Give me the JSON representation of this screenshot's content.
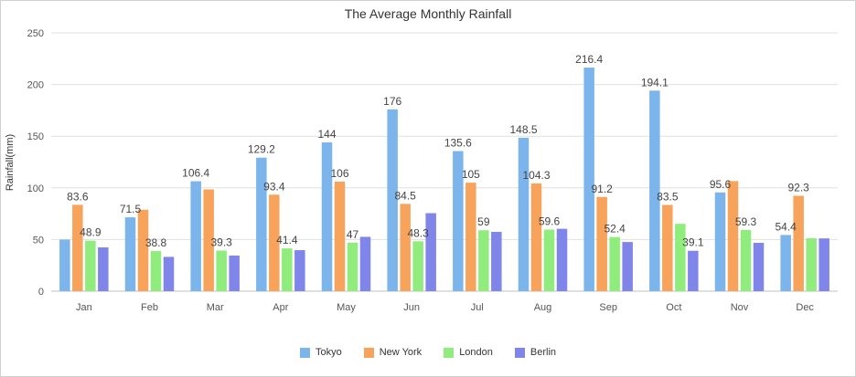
{
  "chart_data": {
    "type": "bar",
    "title": "The Average Monthly Rainfall",
    "xlabel": "",
    "ylabel": "Rainfall(mm)",
    "ylim": [
      0,
      250
    ],
    "yticks": [
      0,
      50,
      100,
      150,
      200,
      250
    ],
    "grid": true,
    "legend_position": "bottom",
    "categories": [
      "Jan",
      "Feb",
      "Mar",
      "Apr",
      "May",
      "Jun",
      "Jul",
      "Aug",
      "Sep",
      "Oct",
      "Nov",
      "Dec"
    ],
    "series": [
      {
        "name": "Tokyo",
        "color": "#7cb5ec",
        "values": [
          49.9,
          71.5,
          106.4,
          129.2,
          144,
          176,
          135.6,
          148.5,
          216.4,
          194.1,
          95.6,
          54.4
        ],
        "labels": [
          "",
          "71.5",
          "106.4",
          "129.2",
          "144",
          "176",
          "135.6",
          "148.5",
          "216.4",
          "194.1",
          "95.6",
          "54.4"
        ]
      },
      {
        "name": "New York",
        "color": "#f7a35c",
        "values": [
          83.6,
          78.8,
          98.5,
          93.4,
          106,
          84.5,
          105,
          104.3,
          91.2,
          83.5,
          106.6,
          92.3
        ],
        "labels": [
          "83.6",
          "",
          "",
          "93.4",
          "106",
          "84.5",
          "105",
          "104.3",
          "91.2",
          "83.5",
          "",
          "92.3"
        ]
      },
      {
        "name": "London",
        "color": "#90ed7d",
        "values": [
          48.9,
          38.8,
          39.3,
          41.4,
          47,
          48.3,
          59,
          59.6,
          52.4,
          65.2,
          59.3,
          51.2
        ],
        "labels": [
          "48.9",
          "38.8",
          "39.3",
          "41.4",
          "47",
          "48.3",
          "59",
          "59.6",
          "52.4",
          "",
          "59.3",
          ""
        ]
      },
      {
        "name": "Berlin",
        "color": "#8085e9",
        "values": [
          42.4,
          33.2,
          34.5,
          39.7,
          52.6,
          75.5,
          57.4,
          60.4,
          47.6,
          39.1,
          46.8,
          51.1
        ],
        "labels": [
          "",
          "",
          "",
          "",
          "",
          "",
          "",
          "",
          "",
          "39.1",
          "",
          ""
        ]
      }
    ]
  }
}
